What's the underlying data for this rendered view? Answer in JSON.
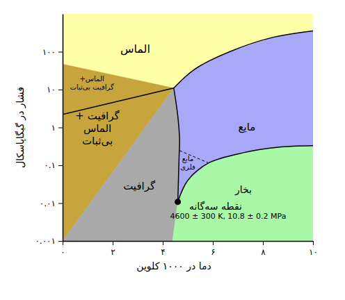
{
  "chart_data": {
    "type": "area",
    "x_label": "دما در ۱۰۰۰ کلوین",
    "y_label": "فشار در گیگاپاسکال",
    "log": "y",
    "grid": false,
    "xlim": [
      0,
      10
    ],
    "ylim": [
      0.001,
      1000
    ],
    "xticks": [
      {
        "value": 0,
        "label": "۰"
      },
      {
        "value": 2,
        "label": "۲"
      },
      {
        "value": 4,
        "label": "۴"
      },
      {
        "value": 6,
        "label": "۶"
      },
      {
        "value": 8,
        "label": "۸"
      },
      {
        "value": 10,
        "label": "۱۰"
      }
    ],
    "yticks": [
      {
        "value": 0.001,
        "label": "۰.۰۰۱"
      },
      {
        "value": 0.01,
        "label": "۰.۰۱"
      },
      {
        "value": 0.1,
        "label": "۰.۱"
      },
      {
        "value": 1,
        "label": "۱"
      },
      {
        "value": 10,
        "label": "۱۰"
      },
      {
        "value": 100,
        "label": "۱۰۰"
      }
    ],
    "regions": [
      {
        "color": "#ffffa8",
        "x": [
          0,
          10,
          10,
          8.33,
          6.67,
          5.28,
          4.44,
          0
        ],
        "y": [
          1000,
          1000,
          355,
          234,
          100,
          34.7,
          11,
          47
        ]
      },
      {
        "color": "#c8a53c",
        "x": [
          0,
          4.44,
          0
        ],
        "y": [
          47,
          11,
          2.2
        ]
      },
      {
        "color": "#c8a53c",
        "x": [
          0,
          4.44,
          0
        ],
        "y": [
          2.2,
          11,
          0.001
        ]
      },
      {
        "color": "#a9a9a9",
        "x": [
          0,
          4.44,
          4.6,
          4.67,
          4.65,
          4.6,
          4.39
        ],
        "y": [
          0.001,
          11,
          2,
          0.5,
          0.15,
          0.0108,
          0.001
        ]
      },
      {
        "color": "#a8a8f8",
        "x": [
          4.44,
          5.28,
          6.67,
          8.33,
          10,
          10,
          8.61,
          7.22,
          5.83,
          5,
          4.6,
          4.65,
          4.67,
          4.6
        ],
        "y": [
          11,
          34.7,
          100,
          234,
          355,
          0.33,
          0.3,
          0.215,
          0.115,
          0.04,
          0.0108,
          0.15,
          0.5,
          2
        ]
      },
      {
        "color": "#a8f8a8",
        "x": [
          4.39,
          4.6,
          5,
          5.83,
          7.22,
          8.61,
          10,
          10
        ],
        "y": [
          0.001,
          0.0108,
          0.04,
          0.115,
          0.215,
          0.3,
          0.33,
          0.001
        ]
      }
    ],
    "lines": [
      {
        "color": "#000000",
        "line_style": "solid",
        "x": [
          0,
          4.44
        ],
        "y": [
          2.2,
          11
        ]
      },
      {
        "color": "#000000",
        "line_style": "solid",
        "x": [
          4.44,
          4.6,
          4.67,
          4.65,
          4.6
        ],
        "y": [
          11,
          2,
          0.5,
          0.15,
          0.0108
        ]
      },
      {
        "color": "#000000",
        "line_style": "solid",
        "x": [
          4.44,
          5.28,
          6.67,
          8.33,
          10
        ],
        "y": [
          11,
          34.7,
          100,
          234,
          355
        ]
      },
      {
        "color": "#000000",
        "line_style": "solid",
        "x": [
          4.6,
          5,
          5.83,
          7.22,
          8.61,
          10
        ],
        "y": [
          0.0108,
          0.04,
          0.115,
          0.215,
          0.3,
          0.33
        ]
      },
      {
        "color": "#000000",
        "line_style": "dashed",
        "x": [
          4.67,
          5.83
        ],
        "y": [
          0.245,
          0.115
        ]
      }
    ],
    "points": [
      {
        "color": "#000000",
        "marker": "circle",
        "x": 4.6,
        "y": 0.0108
      }
    ],
    "annotations": [
      {
        "text": [
          "الماس"
        ],
        "x": 2.9,
        "y": 120
      },
      {
        "text": [
          "الماس+",
          "گرافیت  بی‌ثبات"
        ],
        "x": 1.17,
        "y": 14.8
      },
      {
        "text": [
          "گرافیت +",
          "الماس",
          "بی‌ثبات"
        ],
        "x": 1.39,
        "y": 0.95
      },
      {
        "text": [
          "گرافیت"
        ],
        "x": 3.06,
        "y": 0.028
      },
      {
        "text": [
          "مایع"
        ],
        "x": 7.36,
        "y": 1.02
      },
      {
        "text": [
          "مایع",
          "فلزی"
        ],
        "x": 5.0,
        "y": 0.115
      },
      {
        "text": [
          "بخار"
        ],
        "x": 7.22,
        "y": 0.023
      },
      {
        "text": [
          "نقطه سه‌گانه"
        ],
        "x": 6.11,
        "y": 0.0083
      },
      {
        "text": [
          "4600 ± 300 K, 10.8 ± 0.2 MPa"
        ],
        "x": 6.61,
        "y": 0.0046
      }
    ]
  }
}
